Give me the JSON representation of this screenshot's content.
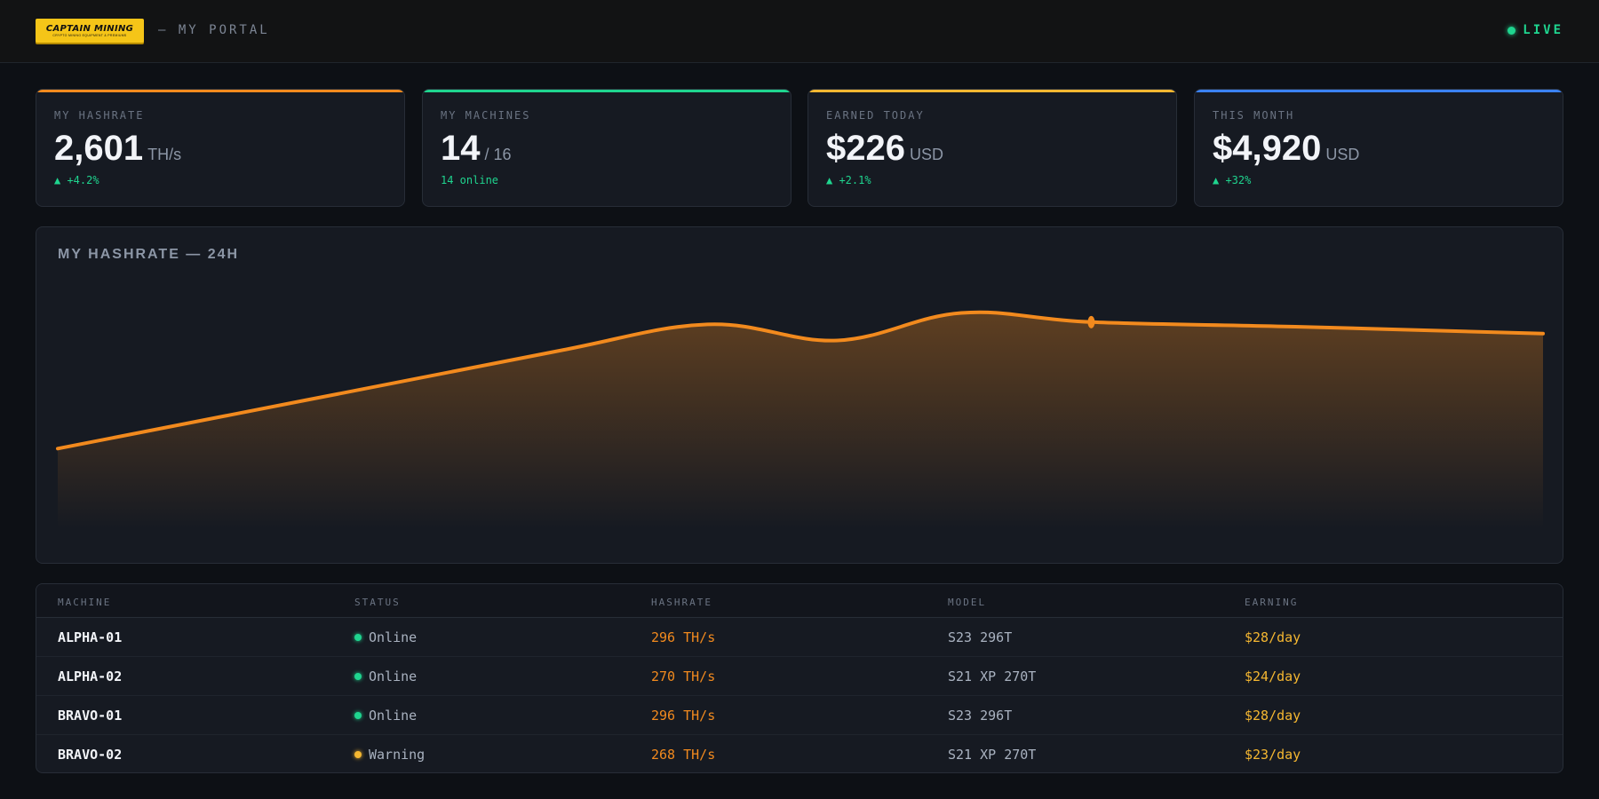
{
  "header": {
    "logo_text": "CAPTAIN MINING",
    "logo_subtext": "CRYPTO MINING EQUIPMENT & PREMIUMS",
    "portal_label": "— MY PORTAL",
    "live_label": "LIVE",
    "colors": {
      "live": "#1fd58f",
      "logo_bg": "#f5c518"
    }
  },
  "cards": [
    {
      "label": "MY HASHRATE",
      "value": "2,601",
      "unit": "TH/s",
      "delta": "▲ +4.2%",
      "accent": "#f28a1e"
    },
    {
      "label": "MY MACHINES",
      "value": "14",
      "unit": "/ 16",
      "delta": "14 online",
      "accent": "#1fd58f"
    },
    {
      "label": "EARNED TODAY",
      "value": "$226",
      "unit": "USD",
      "delta": "▲ +2.1%",
      "accent": "#f5b731"
    },
    {
      "label": "THIS MONTH",
      "value": "$4,920",
      "unit": "USD",
      "delta": "▲ +32%",
      "accent": "#3b82f6"
    }
  ],
  "chart": {
    "title": "MY HASHRATE — 24H",
    "line_color": "#f28a1e"
  },
  "chart_data": {
    "type": "area",
    "title": "MY HASHRATE — 24H",
    "x": [
      0,
      4,
      8,
      10.5,
      12.6,
      14.6,
      16.7,
      20,
      24
    ],
    "values": [
      2150,
      2360,
      2570,
      2690,
      2620,
      2740,
      2700,
      2680,
      2650
    ],
    "ylim": [
      1800,
      2900
    ],
    "highlight_index": 6,
    "grid": false,
    "xlabel": "",
    "ylabel": ""
  },
  "table": {
    "columns": [
      "MACHINE",
      "STATUS",
      "HASHRATE",
      "MODEL",
      "EARNING"
    ],
    "rows": [
      {
        "machine": "ALPHA-01",
        "status": "Online",
        "status_color": "#1fd58f",
        "hashrate": "296 TH/s",
        "model": "S23 296T",
        "earning": "$28/day"
      },
      {
        "machine": "ALPHA-02",
        "status": "Online",
        "status_color": "#1fd58f",
        "hashrate": "270 TH/s",
        "model": "S21 XP 270T",
        "earning": "$24/day"
      },
      {
        "machine": "BRAVO-01",
        "status": "Online",
        "status_color": "#1fd58f",
        "hashrate": "296 TH/s",
        "model": "S23 296T",
        "earning": "$28/day"
      },
      {
        "machine": "BRAVO-02",
        "status": "Warning",
        "status_color": "#f5b731",
        "hashrate": "268 TH/s",
        "model": "S21 XP 270T",
        "earning": "$23/day"
      }
    ]
  }
}
